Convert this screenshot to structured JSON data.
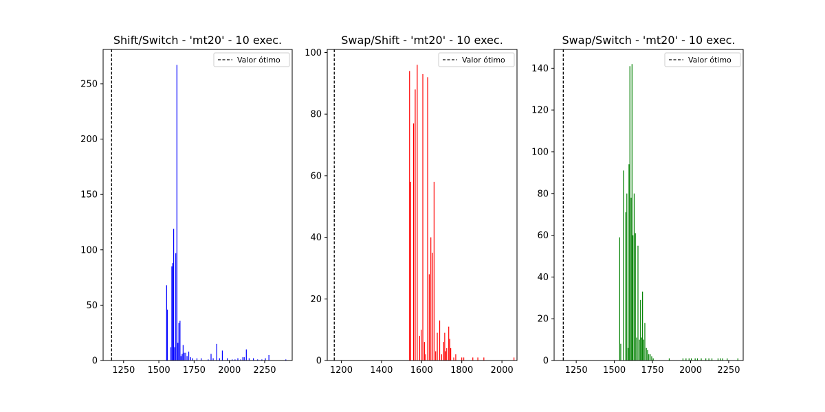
{
  "optimum_value": 1165,
  "chart_data": [
    {
      "type": "bar",
      "title": "Shift/Switch - 'mt20' - 10 exec.",
      "color": "#0000ff",
      "legend": {
        "label": "Valor ótimo",
        "placement": "top-right"
      },
      "xlim": [
        1105,
        2445
      ],
      "ylim": [
        0,
        281
      ],
      "xticks": [
        1250,
        1500,
        1750,
        2000,
        2250
      ],
      "yticks": [
        0,
        50,
        100,
        150,
        200,
        250
      ],
      "x": [
        1555,
        1560,
        1585,
        1592,
        1598,
        1605,
        1612,
        1620,
        1628,
        1635,
        1642,
        1650,
        1657,
        1665,
        1672,
        1680,
        1690,
        1700,
        1712,
        1725,
        1740,
        1770,
        1800,
        1850,
        1870,
        1885,
        1910,
        1930,
        1950,
        1985,
        2020,
        2040,
        2060,
        2080,
        2095,
        2105,
        2120,
        2140,
        2170,
        2200,
        2230,
        2255,
        2280,
        2400
      ],
      "values": [
        68,
        46,
        12,
        85,
        88,
        119,
        12,
        97,
        267,
        16,
        34,
        36,
        4,
        6,
        14,
        7,
        7,
        4,
        8,
        3,
        2,
        2,
        2,
        1,
        6,
        2,
        15,
        2,
        9,
        2,
        1,
        1,
        2,
        1,
        3,
        3,
        10,
        2,
        2,
        1,
        1,
        2,
        5,
        1
      ]
    },
    {
      "type": "bar",
      "title": "Swap/Shift - 'mt20' - 10 exec.",
      "color": "#ff0000",
      "legend": {
        "label": "Valor ótimo",
        "placement": "top-right"
      },
      "xlim": [
        1130,
        2075
      ],
      "ylim": [
        0,
        101
      ],
      "xticks": [
        1200,
        1400,
        1600,
        1800,
        2000
      ],
      "yticks": [
        0,
        20,
        40,
        60,
        80,
        100
      ],
      "x": [
        1540,
        1545,
        1560,
        1568,
        1578,
        1590,
        1598,
        1606,
        1614,
        1620,
        1630,
        1638,
        1646,
        1654,
        1662,
        1670,
        1678,
        1690,
        1700,
        1710,
        1715,
        1720,
        1725,
        1735,
        1740,
        1745,
        1760,
        1770,
        1800,
        1810,
        1855,
        1880,
        1910,
        2060
      ],
      "values": [
        94,
        58,
        77,
        88,
        96,
        8,
        10,
        93,
        6,
        2,
        92,
        28,
        40,
        35,
        58,
        3,
        9,
        13,
        2,
        6,
        9,
        3,
        4,
        11,
        7,
        4,
        1,
        2,
        1,
        1,
        1,
        1,
        1,
        1
      ]
    },
    {
      "type": "bar",
      "title": "Swap/Switch - 'mt20' - 10 exec.",
      "color": "#008000",
      "legend": {
        "label": "Valor ótimo",
        "placement": "top-right"
      },
      "xlim": [
        1105,
        2345
      ],
      "ylim": [
        0,
        149
      ],
      "xticks": [
        1250,
        1500,
        1750,
        2000,
        2250
      ],
      "yticks": [
        0,
        20,
        40,
        60,
        80,
        100,
        120,
        140
      ],
      "x": [
        1535,
        1542,
        1560,
        1575,
        1582,
        1590,
        1596,
        1602,
        1610,
        1616,
        1622,
        1630,
        1638,
        1646,
        1655,
        1665,
        1672,
        1678,
        1685,
        1692,
        1700,
        1710,
        1718,
        1726,
        1735,
        1745,
        1755,
        1860,
        1950,
        1970,
        1990,
        2005,
        2030,
        2045,
        2070,
        2100,
        2120,
        2140,
        2180,
        2195,
        2210,
        2240,
        2310
      ],
      "values": [
        59,
        8,
        91,
        71,
        80,
        6,
        94,
        141,
        78,
        142,
        60,
        80,
        61,
        11,
        55,
        10,
        29,
        11,
        33,
        10,
        18,
        6,
        5,
        3,
        3,
        2,
        1,
        1,
        1,
        1,
        1,
        1,
        1,
        1,
        1,
        1,
        1,
        1,
        1,
        1,
        1,
        1,
        1
      ]
    }
  ]
}
